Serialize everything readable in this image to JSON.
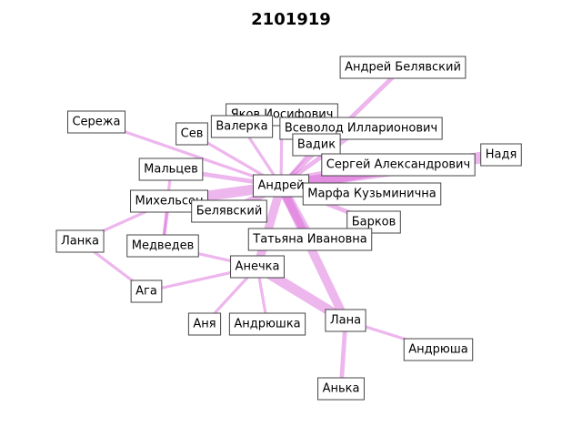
{
  "title": "2101919",
  "colors": {
    "edge": "#d75ed7",
    "node_border": "#444444",
    "node_fill": "#ffffff"
  },
  "nodes": [
    "Андрей Белявский",
    "Сережа",
    "Яков Иосифович",
    "Сев",
    "Валерка",
    "Всеволод Илларионович",
    "Вадик",
    "Надя",
    "Сергей Александрович",
    "Мальцев",
    "Андрей",
    "Марфа Кузьминична",
    "Михельсон",
    "Белявский",
    "Барков",
    "Ланка",
    "Медведев",
    "Татьяна Ивановна",
    "Анечка",
    "Ага",
    "Аня",
    "Андрюшка",
    "Лана",
    "Андрюша",
    "Анька"
  ],
  "edges": [
    {
      "source": "Андрей",
      "target": "Андрей Белявский",
      "weight": 3
    },
    {
      "source": "Андрей",
      "target": "Сережа",
      "weight": 2
    },
    {
      "source": "Андрей",
      "target": "Яков Иосифович",
      "weight": 2
    },
    {
      "source": "Андрей",
      "target": "Сев",
      "weight": 2
    },
    {
      "source": "Андрей",
      "target": "Валерка",
      "weight": 2
    },
    {
      "source": "Андрей",
      "target": "Всеволод Илларионович",
      "weight": 3
    },
    {
      "source": "Андрей",
      "target": "Вадик",
      "weight": 2
    },
    {
      "source": "Андрей",
      "target": "Надя",
      "weight": 8
    },
    {
      "source": "Андрей",
      "target": "Сергей Александрович",
      "weight": 10
    },
    {
      "source": "Андрей",
      "target": "Мальцев",
      "weight": 3
    },
    {
      "source": "Андрей",
      "target": "Марфа Кузьминична",
      "weight": 6
    },
    {
      "source": "Андрей",
      "target": "Михельсон",
      "weight": 7
    },
    {
      "source": "Андрей",
      "target": "Белявский",
      "weight": 5
    },
    {
      "source": "Андрей",
      "target": "Барков",
      "weight": 3
    },
    {
      "source": "Андрей",
      "target": "Татьяна Ивановна",
      "weight": 7
    },
    {
      "source": "Андрей",
      "target": "Анечка",
      "weight": 6
    },
    {
      "source": "Андрей",
      "target": "Лана",
      "weight": 6
    },
    {
      "source": "Мальцев",
      "target": "Медведев",
      "weight": 2
    },
    {
      "source": "Михельсон",
      "target": "Ланка",
      "weight": 2
    },
    {
      "source": "Михельсон",
      "target": "Медведев",
      "weight": 2
    },
    {
      "source": "Ланка",
      "target": "Ага",
      "weight": 2
    },
    {
      "source": "Медведев",
      "target": "Анечка",
      "weight": 2
    },
    {
      "source": "Анечка",
      "target": "Ага",
      "weight": 2
    },
    {
      "source": "Анечка",
      "target": "Аня",
      "weight": 2
    },
    {
      "source": "Анечка",
      "target": "Андрюшка",
      "weight": 2
    },
    {
      "source": "Анечка",
      "target": "Лана",
      "weight": 7
    },
    {
      "source": "Лана",
      "target": "Андрюша",
      "weight": 2
    },
    {
      "source": "Лана",
      "target": "Анька",
      "weight": 3
    }
  ]
}
